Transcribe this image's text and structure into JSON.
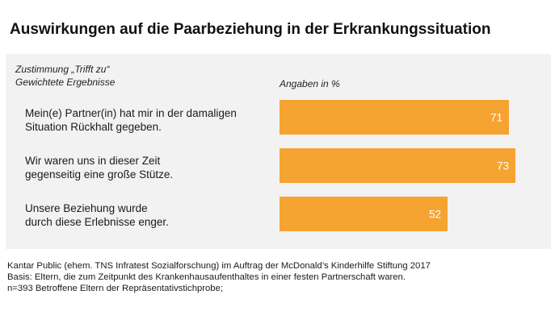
{
  "chart_data": {
    "type": "bar",
    "orientation": "horizontal",
    "title": "Auswirkungen auf die Paarbeziehung in der Erkrankungssituation",
    "subtitle_lines": [
      "Zustimmung „Trifft zu“",
      "Gewichtete Ergebnisse"
    ],
    "unit_label": "Angaben in %",
    "categories": [
      [
        "Mein(e) Partner(in) hat mir in der damaligen",
        "Situation Rückhalt gegeben."
      ],
      [
        "Wir waren uns in dieser Zeit",
        "gegenseitig eine große Stütze."
      ],
      [
        "Unsere Beziehung wurde",
        "durch diese Erlebnisse enger."
      ]
    ],
    "values": [
      71,
      73,
      52
    ],
    "bar_color": "#f5a431",
    "value_label_color": "#ffffff",
    "grid": false
  },
  "source": {
    "lines": [
      "Kantar Public (ehem. TNS Infratest Sozialforschung) im Auftrag der McDonald’s Kinderhilfe Stiftung 2017",
      "Basis: Eltern, die zum Zeitpunkt des Krankenhausaufenthaltes in einer festen Partnerschaft waren.",
      "n=393 Betroffene Eltern der Repräsentativstichprobe;"
    ]
  }
}
